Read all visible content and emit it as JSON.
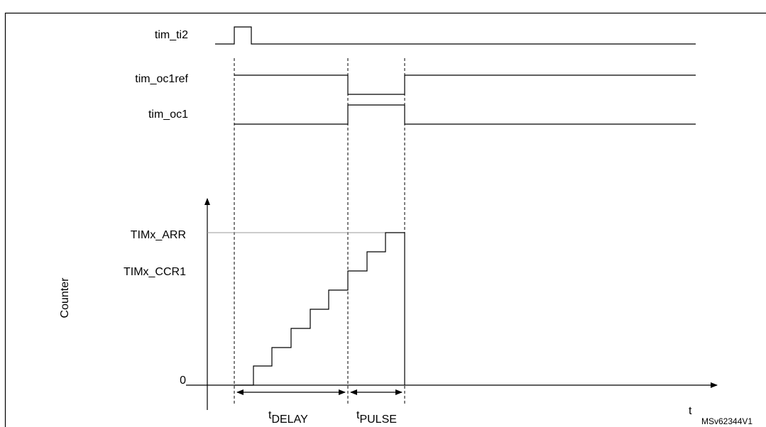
{
  "signals": [
    {
      "label": "tim_ti2"
    },
    {
      "label": "tim_oc1ref"
    },
    {
      "label": "tim_oc1"
    }
  ],
  "counter_axis": {
    "label": "Counter",
    "levels": [
      "TIMx_ARR",
      "TIMx_CCR1",
      "0"
    ]
  },
  "time_axis": {
    "label": "t"
  },
  "intervals": [
    {
      "symbol": "t",
      "subscript": "DELAY"
    },
    {
      "symbol": "t",
      "subscript": "PULSE"
    }
  ],
  "reference": "MSv62344V1"
}
